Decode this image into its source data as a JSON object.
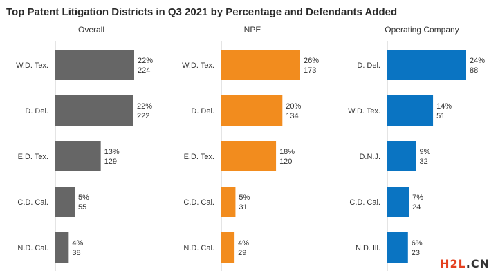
{
  "chart_data": [
    {
      "type": "bar",
      "orientation": "horizontal",
      "title": "Overall",
      "color": "#666666",
      "categories": [
        "W.D. Tex.",
        "D. Del.",
        "E.D. Tex.",
        "C.D. Cal.",
        "N.D. Cal."
      ],
      "percentages": [
        "22%",
        "22%",
        "13%",
        "5%",
        "4%"
      ],
      "values": [
        224,
        222,
        129,
        55,
        38
      ]
    },
    {
      "type": "bar",
      "orientation": "horizontal",
      "title": "NPE",
      "color": "#f28c1e",
      "categories": [
        "W.D. Tex.",
        "D. Del.",
        "E.D. Tex.",
        "C.D. Cal.",
        "N.D. Cal."
      ],
      "percentages": [
        "26%",
        "20%",
        "18%",
        "5%",
        "4%"
      ],
      "values": [
        173,
        134,
        120,
        31,
        29
      ]
    },
    {
      "type": "bar",
      "orientation": "horizontal",
      "title": "Operating Company",
      "color": "#0a74c2",
      "categories": [
        "D. Del.",
        "W.D. Tex.",
        "D.N.J.",
        "C.D. Cal.",
        "N.D. Ill."
      ],
      "percentages": [
        "24%",
        "14%",
        "9%",
        "7%",
        "6%"
      ],
      "values": [
        88,
        51,
        32,
        24,
        23
      ]
    }
  ],
  "title": "Top Patent Litigation Districts in Q3 2021 by Percentage and Defendants Added",
  "watermark": {
    "part1": "H2L",
    "part2": ".CN"
  }
}
